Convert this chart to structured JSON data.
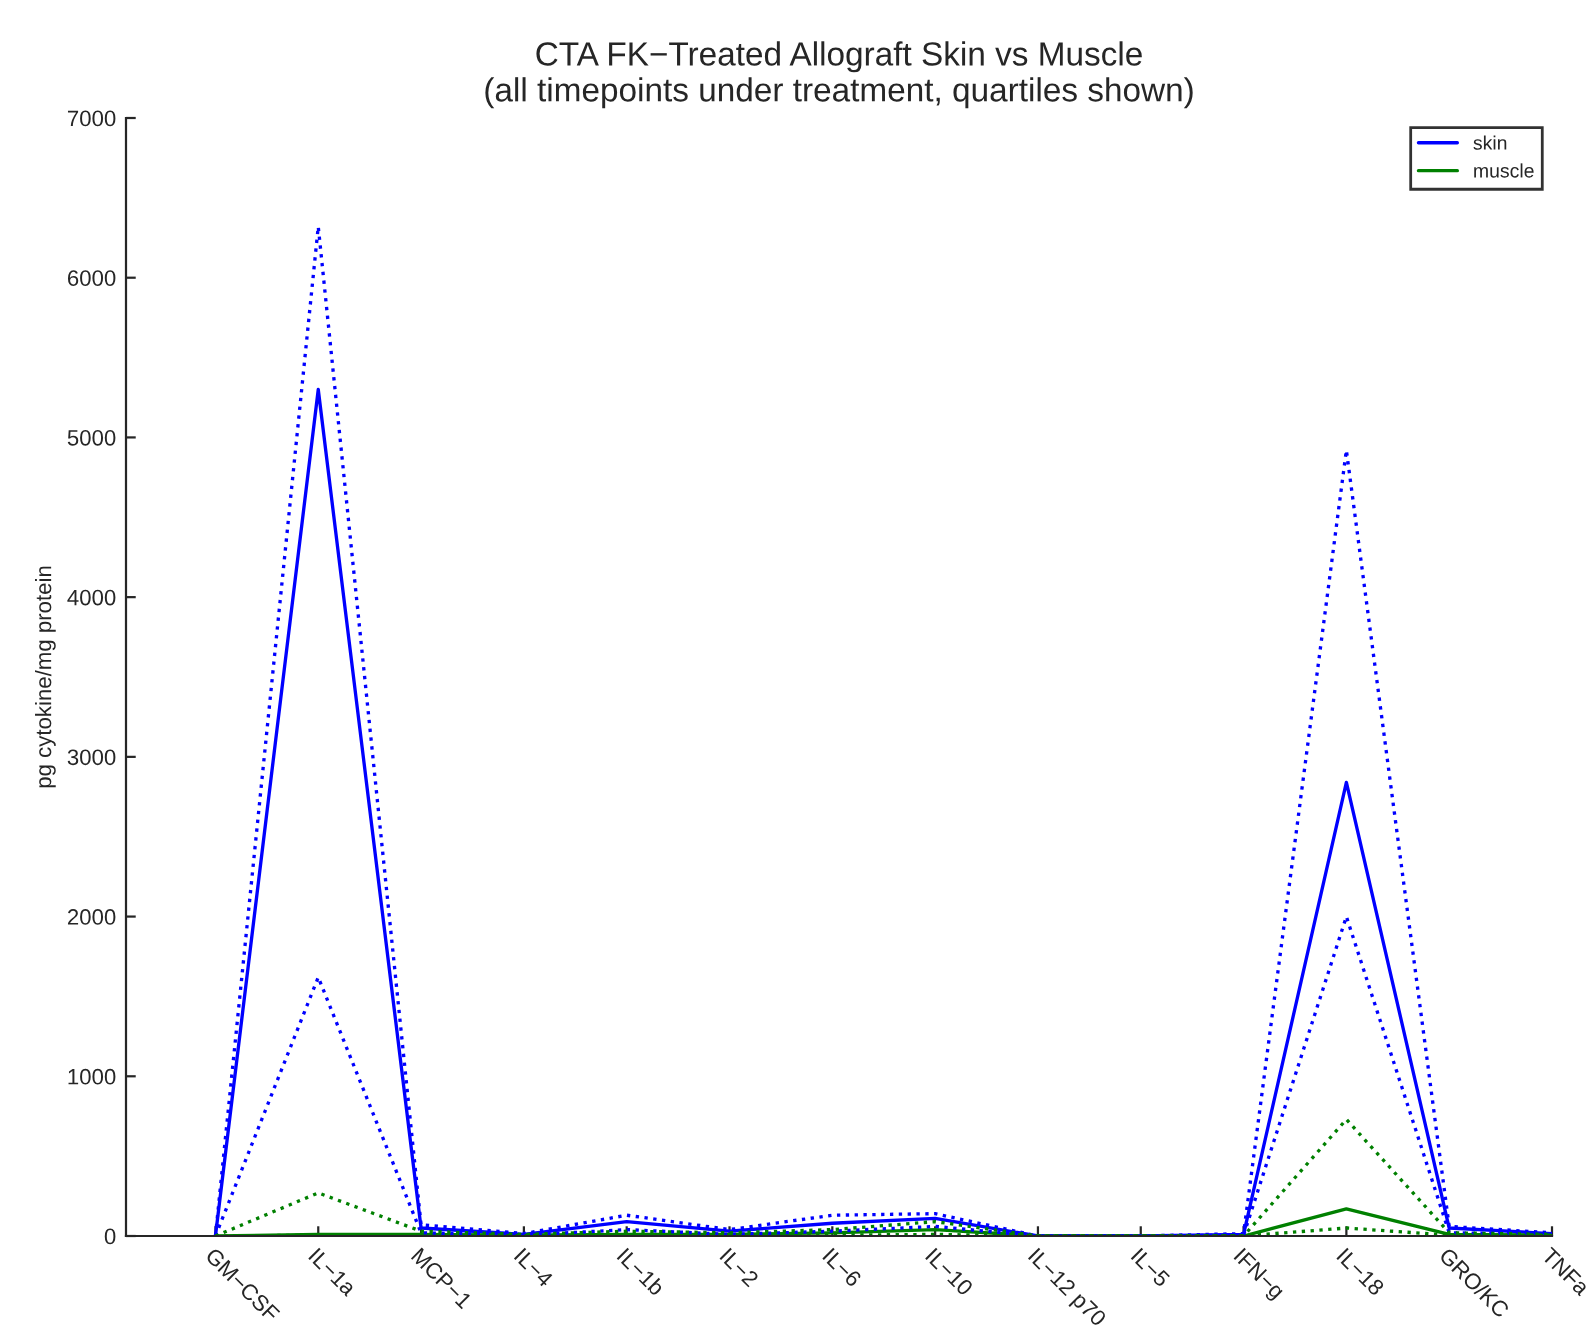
{
  "chart_data": {
    "type": "line",
    "title": "CTA FK−Treated Allograft Skin vs Muscle\n(all timepoints under treatment, quartiles shown)",
    "ylabel": "pg cytokine/mg protein",
    "categories": [
      "GM−CSF",
      "IL−1a",
      "MCP−1",
      "IL−4",
      "IL−1b",
      "IL−2",
      "IL−6",
      "IL−10",
      "IL−12 p70",
      "IL−5",
      "IFN−g",
      "IL−18",
      "GRO/KC",
      "TNFa"
    ],
    "series": [
      {
        "name": "skin",
        "color": "#0000ff",
        "line_style": "solid",
        "values": [
          0,
          5300,
          50,
          10,
          90,
          30,
          80,
          110,
          0,
          0,
          10,
          2840,
          50,
          15
        ]
      },
      {
        "name": "muscle",
        "color": "#008000",
        "line_style": "solid",
        "values": [
          0,
          10,
          10,
          5,
          10,
          10,
          20,
          40,
          0,
          0,
          0,
          170,
          10,
          5
        ]
      },
      {
        "color": "#0000ff",
        "line_style": "dotted",
        "values": [
          0,
          6320,
          70,
          15,
          130,
          40,
          130,
          140,
          0,
          0,
          15,
          4920,
          60,
          20
        ]
      },
      {
        "color": "#0000ff",
        "line_style": "dotted",
        "values": [
          0,
          1620,
          20,
          5,
          40,
          10,
          30,
          60,
          0,
          0,
          5,
          2000,
          20,
          10
        ]
      },
      {
        "color": "#008000",
        "line_style": "dotted",
        "values": [
          0,
          270,
          30,
          10,
          30,
          20,
          40,
          90,
          0,
          0,
          0,
          730,
          20,
          10
        ]
      },
      {
        "color": "#008000",
        "line_style": "dotted",
        "values": [
          0,
          5,
          5,
          2,
          5,
          5,
          5,
          10,
          0,
          0,
          0,
          50,
          5,
          2
        ]
      }
    ],
    "ylim": [
      0,
      7000
    ],
    "yticks": [
      0,
      1000,
      2000,
      3000,
      4000,
      5000,
      6000,
      7000
    ],
    "grid": false,
    "legend": "top right"
  }
}
